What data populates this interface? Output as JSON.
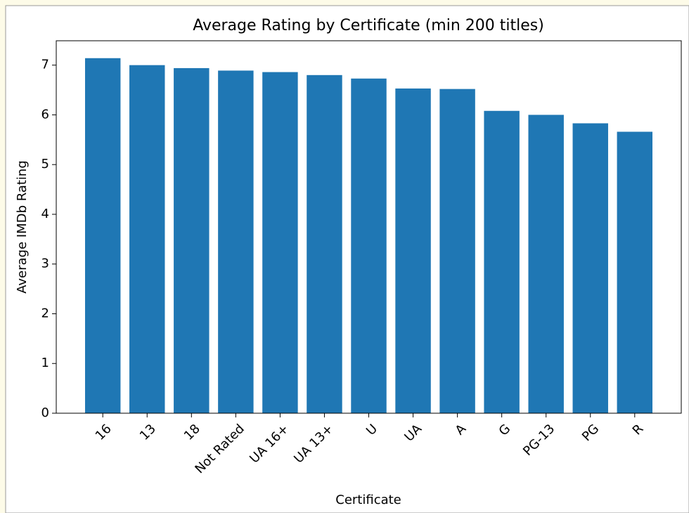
{
  "chart_data": {
    "type": "bar",
    "title": "Average Rating by Certificate (min 200 titles)",
    "x_label": "Certificate",
    "y_label": "Average IMDb Rating",
    "categories": [
      "16",
      "13",
      "18",
      "Not Rated",
      "UA 16+",
      "UA 13+",
      "U",
      "UA",
      "A",
      "G",
      "PG-13",
      "PG",
      "R"
    ],
    "values": [
      7.14,
      7.0,
      6.94,
      6.89,
      6.86,
      6.8,
      6.73,
      6.53,
      6.52,
      6.08,
      6.0,
      5.83,
      5.66
    ],
    "color": "#1f77b4",
    "ylim": [
      0,
      7.49
    ],
    "yticks": [
      0,
      1,
      2,
      3,
      4,
      5,
      6,
      7
    ],
    "grid": false
  }
}
